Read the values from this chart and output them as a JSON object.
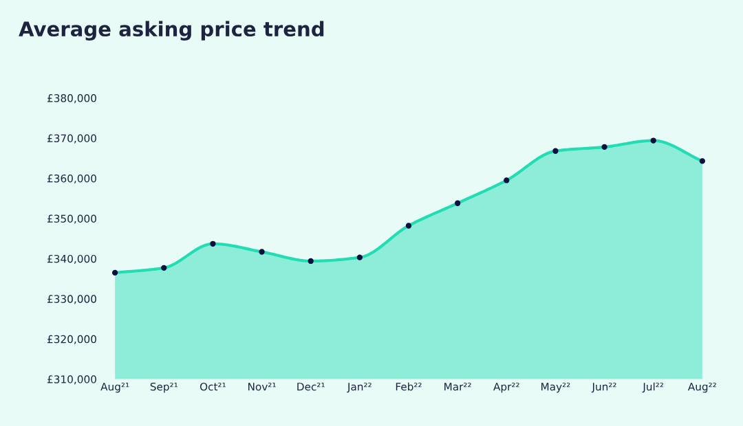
{
  "chart_data": {
    "type": "area",
    "title": "Average asking price trend",
    "categories": [
      "Aug²¹",
      "Sep²¹",
      "Oct²¹",
      "Nov²¹",
      "Dec²¹",
      "Jan²²",
      "Feb²²",
      "Mar²²",
      "Apr²²",
      "May²²",
      "Jun²²",
      "Jul²²",
      "Aug²²"
    ],
    "series": [
      {
        "color": "#22dcb3",
        "values": [
          336500,
          337700,
          343700,
          341700,
          339400,
          340300,
          348200,
          353800,
          359500,
          366800,
          367800,
          369400,
          364300
        ]
      }
    ],
    "ylim": [
      310000,
      380000
    ],
    "yticks": [
      {
        "value": 310000,
        "label": "£310,000"
      },
      {
        "value": 320000,
        "label": "£320,000"
      },
      {
        "value": 330000,
        "label": "£330,000"
      },
      {
        "value": 340000,
        "label": "£340,000"
      },
      {
        "value": 350000,
        "label": "£350,000"
      },
      {
        "value": 360000,
        "label": "£360,000"
      },
      {
        "value": 370000,
        "label": "£370,000"
      },
      {
        "value": 380000,
        "label": "£380,000"
      }
    ],
    "grid": false,
    "marker": "circle",
    "line_style": "solid"
  }
}
